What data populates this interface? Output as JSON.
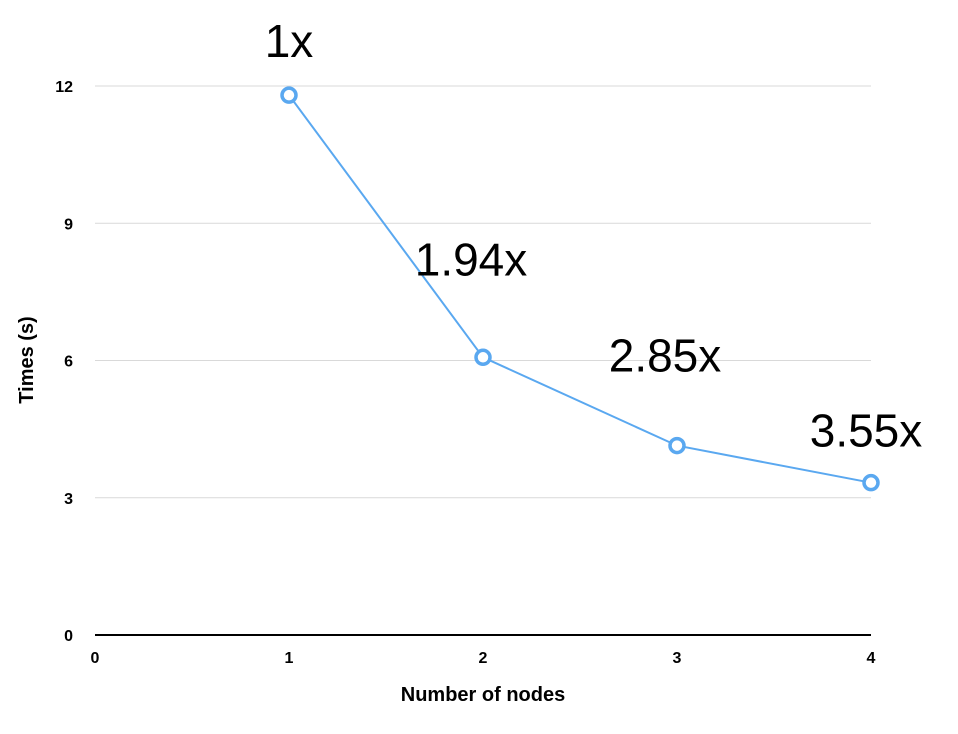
{
  "chart_data": {
    "type": "line",
    "title": "",
    "xlabel": "Number of nodes",
    "ylabel": "Times (s)",
    "xlim": [
      0,
      4
    ],
    "ylim": [
      0,
      12
    ],
    "x_ticks": [
      "0",
      "1",
      "2",
      "3",
      "4"
    ],
    "y_ticks": [
      "0",
      "3",
      "6",
      "9",
      "12"
    ],
    "grid": true,
    "legend": "none",
    "series": [
      {
        "x": [
          1,
          2,
          3,
          4
        ],
        "values": [
          11.8,
          6.07,
          4.14,
          3.33
        ],
        "labels": [
          "1x",
          "1.94x",
          "2.85x",
          "3.55x"
        ],
        "color": "#5aa8f0"
      }
    ]
  }
}
